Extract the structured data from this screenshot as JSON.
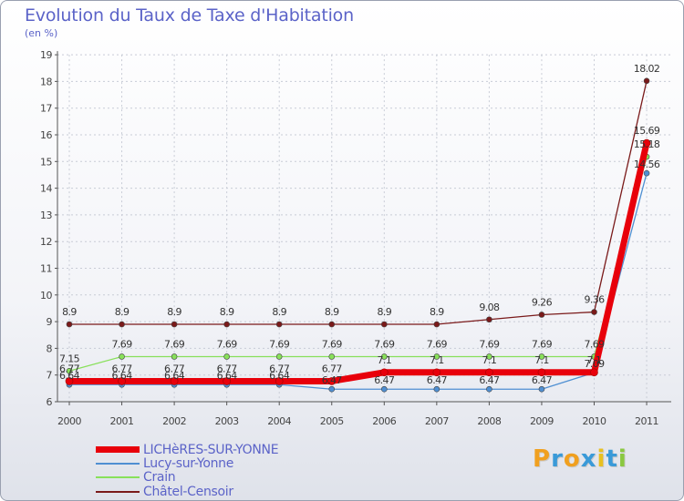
{
  "chart_data": {
    "type": "line",
    "title": "Evolution du Taux de Taxe d'Habitation",
    "ylabel": "(en %)",
    "xlabel": "",
    "ylim": [
      6,
      19
    ],
    "grid": true,
    "x": [
      "2000",
      "2001",
      "2002",
      "2003",
      "2004",
      "2005",
      "2006",
      "2007",
      "2008",
      "2009",
      "2010",
      "2011"
    ],
    "y_ticks": [
      "6",
      "7",
      "8",
      "9",
      "10",
      "11",
      "12",
      "13",
      "14",
      "15",
      "16",
      "17",
      "18",
      "19"
    ],
    "series": [
      {
        "name": "LICHèRES-SUR-YONNE",
        "color": "#e8000b",
        "values": [
          6.77,
          6.77,
          6.77,
          6.77,
          6.77,
          6.77,
          7.1,
          7.1,
          7.1,
          7.1,
          7.1,
          15.69
        ],
        "labels": [
          "6.77",
          "6.77",
          "6.77",
          "6.77",
          "6.77",
          "6.77",
          "7.1",
          "7.1",
          "7.1",
          "7.1",
          "7.1",
          "15.69"
        ]
      },
      {
        "name": "Lucy-sur-Yonne",
        "color": "#4f8fd2",
        "values": [
          6.64,
          6.64,
          6.64,
          6.64,
          6.64,
          6.47,
          6.47,
          6.47,
          6.47,
          6.47,
          7.09,
          14.56
        ],
        "labels": [
          "6.64",
          "6.64",
          "6.64",
          "6.64",
          "6.64",
          "6.47",
          "6.47",
          "6.47",
          "6.47",
          "6.47",
          "7.09",
          "14.56"
        ]
      },
      {
        "name": "Crain",
        "color": "#88e05a",
        "values": [
          7.15,
          7.69,
          7.69,
          7.69,
          7.69,
          7.69,
          7.69,
          7.69,
          7.69,
          7.69,
          7.69,
          15.18
        ],
        "labels": [
          "7.15",
          "7.69",
          "7.69",
          "7.69",
          "7.69",
          "7.69",
          "7.69",
          "7.69",
          "7.69",
          "7.69",
          "7.69",
          "15.18"
        ]
      },
      {
        "name": "Châtel-Censoir",
        "color": "#7a1a1a",
        "values": [
          8.9,
          8.9,
          8.9,
          8.9,
          8.9,
          8.9,
          8.9,
          8.9,
          9.08,
          9.26,
          9.36,
          18.02
        ],
        "labels": [
          "8.9",
          "8.9",
          "8.9",
          "8.9",
          "8.9",
          "8.9",
          "8.9",
          "8.9",
          "9.08",
          "9.26",
          "9.36",
          "18.02"
        ]
      }
    ]
  },
  "logo": {
    "letters": [
      "P",
      "r",
      "o",
      "x",
      "i",
      "t",
      "i"
    ],
    "colors": [
      "#f0a020",
      "#3a9ad8",
      "#f0a020",
      "#3a9ad8",
      "#e8c020",
      "#3a9ad8",
      "#8ac840"
    ]
  }
}
